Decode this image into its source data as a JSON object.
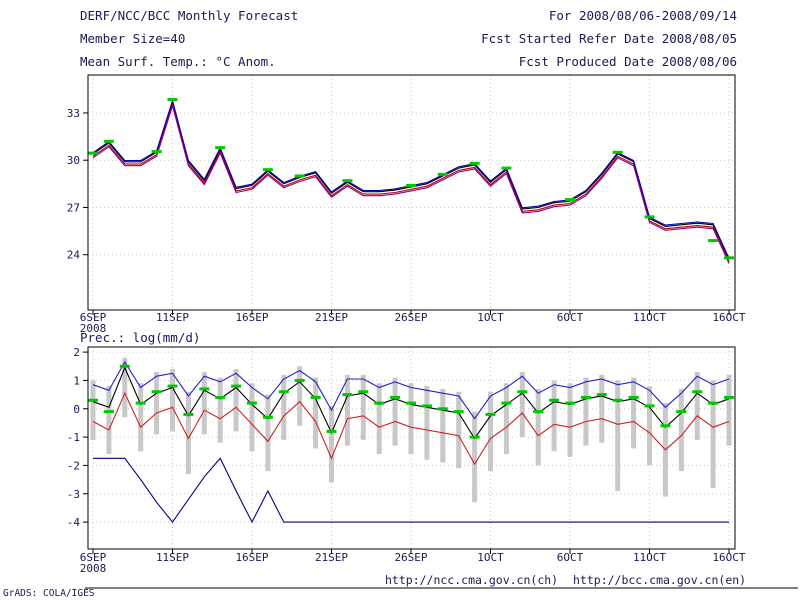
{
  "header": {
    "title": "DERF/NCC/BCC Monthly Forecast",
    "member_size": "Member Size=40",
    "for_period": "For 2008/08/06-2008/09/14",
    "fcst_started": "Fcst Started Refer Date 2008/08/05",
    "fcst_produced": "Fcst Produced Date 2008/08/06"
  },
  "footer": {
    "grads_credit": "GrADS: COLA/IGES",
    "url_ch": "http://ncc.cma.gov.cn(ch)",
    "url_en": "http://bcc.cma.gov.cn(en)"
  },
  "colors": {
    "text": "#1a1a52",
    "obs_dash_green": "#00c800",
    "spread_bar_gray": "#c8c8c8",
    "frame": "#000000"
  },
  "chart_data": [
    {
      "type": "line",
      "title": "Mean Surf. Temp.: °C Anom.",
      "xlabel": "",
      "ylabel": "°C",
      "ylim": [
        20.49,
        35.41
      ],
      "yticks": [
        24,
        27,
        30,
        33
      ],
      "x_range_days": [
        0,
        40
      ],
      "x_tick_days": [
        0,
        5,
        10,
        15,
        20,
        25,
        30,
        35,
        40
      ],
      "x_ticklabels": [
        "6SEP",
        "11SEP",
        "16SEP",
        "21SEP",
        "26SEP",
        "1OCT",
        "6OCT",
        "11OCT",
        "16OCT"
      ],
      "year_label": "2008",
      "grid": true,
      "series": [
        {
          "name": "ensemble-mean-black",
          "color": "#000000",
          "values": [
            30.4,
            31.1,
            29.9,
            29.9,
            30.5,
            33.7,
            29.9,
            28.7,
            30.7,
            28.2,
            28.4,
            29.3,
            28.5,
            28.9,
            29.2,
            27.9,
            28.6,
            28.0,
            28.0,
            28.1,
            28.3,
            28.5,
            29.0,
            29.5,
            29.7,
            28.6,
            29.4,
            26.9,
            27.0,
            27.3,
            27.4,
            28.0,
            29.1,
            30.4,
            29.9,
            26.3,
            25.8,
            25.9,
            26.0,
            25.9,
            23.7
          ]
        },
        {
          "name": "member-line-red",
          "color": "#b40000",
          "values": [
            30.25,
            30.95,
            29.75,
            29.75,
            30.35,
            33.55,
            29.75,
            28.55,
            30.55,
            28.05,
            28.25,
            29.15,
            28.35,
            28.75,
            29.05,
            27.75,
            28.45,
            27.85,
            27.85,
            27.95,
            28.15,
            28.35,
            28.85,
            29.35,
            29.55,
            28.45,
            29.25,
            26.75,
            26.85,
            27.15,
            27.25,
            27.85,
            28.95,
            30.25,
            29.75,
            26.15,
            25.65,
            25.75,
            25.85,
            25.75,
            23.55
          ]
        },
        {
          "name": "member-line-blue",
          "color": "#0000b4",
          "values": [
            30.48,
            31.18,
            29.98,
            29.98,
            30.58,
            33.78,
            29.98,
            28.78,
            30.78,
            28.28,
            28.48,
            29.38,
            28.58,
            28.98,
            29.28,
            27.98,
            28.68,
            28.08,
            28.08,
            28.18,
            28.38,
            28.58,
            29.08,
            29.58,
            29.78,
            28.68,
            29.48,
            26.98,
            27.08,
            27.38,
            27.48,
            28.08,
            29.18,
            30.48,
            29.98,
            26.38,
            25.88,
            25.98,
            26.08,
            25.98,
            23.78
          ]
        },
        {
          "name": "member-line-purple",
          "color": "#8c008c",
          "values": [
            30.15,
            30.85,
            29.65,
            29.65,
            30.25,
            33.45,
            29.65,
            28.45,
            30.45,
            27.95,
            28.15,
            29.05,
            28.25,
            28.65,
            28.95,
            27.65,
            28.35,
            27.75,
            27.75,
            27.85,
            28.05,
            28.25,
            28.75,
            29.25,
            29.45,
            28.35,
            29.15,
            26.65,
            26.75,
            27.05,
            27.15,
            27.75,
            28.85,
            30.15,
            29.65,
            26.05,
            25.55,
            25.65,
            25.75,
            25.65,
            23.45
          ]
        }
      ],
      "obs_dashes": {
        "name": "green-observation-dashes",
        "color": "#00c800",
        "days": [
          0,
          1,
          4,
          5,
          8,
          11,
          13,
          16,
          20,
          22,
          24,
          26,
          30,
          33,
          35,
          39,
          40
        ],
        "values": [
          30.45,
          31.2,
          30.55,
          33.85,
          30.8,
          29.4,
          29.0,
          28.7,
          28.4,
          29.1,
          29.8,
          29.5,
          27.5,
          30.5,
          26.4,
          24.9,
          23.8
        ]
      }
    },
    {
      "type": "line",
      "title": "Prec.: log(mm/d)",
      "xlabel": "",
      "ylabel": "log(mm/d)",
      "ylim": [
        -4.95,
        2.18
      ],
      "yticks": [
        2,
        1,
        0,
        -1,
        -2,
        -3,
        -4
      ],
      "x_range_days": [
        0,
        40
      ],
      "x_tick_days": [
        0,
        5,
        10,
        15,
        20,
        25,
        30,
        35,
        40
      ],
      "x_ticklabels": [
        "6SEP",
        "11SEP",
        "16SEP",
        "21SEP",
        "26SEP",
        "1OCT",
        "6OCT",
        "11OCT",
        "16OCT"
      ],
      "year_label": "2008",
      "grid": true,
      "bars": {
        "name": "ensemble-spread-bars",
        "color": "#c8c8c8",
        "high": [
          1.0,
          0.8,
          1.8,
          0.9,
          1.3,
          1.4,
          0.6,
          1.3,
          1.1,
          1.4,
          0.9,
          0.5,
          1.2,
          1.5,
          1.1,
          0.1,
          1.2,
          1.2,
          0.9,
          1.1,
          0.9,
          0.8,
          0.7,
          0.6,
          -0.1,
          0.6,
          0.9,
          1.3,
          0.7,
          1.0,
          0.9,
          1.1,
          1.2,
          1.0,
          1.1,
          0.8,
          0.2,
          0.7,
          1.3,
          1.0,
          1.2
        ],
        "low": [
          -1.1,
          -1.6,
          -0.3,
          -1.5,
          -0.9,
          -0.8,
          -2.3,
          -0.9,
          -1.2,
          -0.8,
          -1.5,
          -2.2,
          -1.1,
          -0.6,
          -1.4,
          -2.6,
          -1.3,
          -1.1,
          -1.6,
          -1.3,
          -1.6,
          -1.8,
          -1.9,
          -2.1,
          -3.3,
          -2.2,
          -1.6,
          -1.0,
          -2.0,
          -1.5,
          -1.7,
          -1.3,
          -1.2,
          -2.9,
          -1.4,
          -2.0,
          -3.1,
          -2.2,
          -1.1,
          -2.8,
          -1.3
        ]
      },
      "series": [
        {
          "name": "upper-envelope-blue",
          "color": "#2222cc",
          "values": [
            0.85,
            0.65,
            1.65,
            0.75,
            1.15,
            1.25,
            0.45,
            1.15,
            0.95,
            1.25,
            0.75,
            0.35,
            1.05,
            1.35,
            0.95,
            -0.05,
            1.05,
            1.05,
            0.75,
            0.95,
            0.75,
            0.65,
            0.55,
            0.45,
            -0.35,
            0.45,
            0.75,
            1.15,
            0.55,
            0.85,
            0.75,
            0.95,
            1.05,
            0.85,
            0.95,
            0.65,
            0.05,
            0.55,
            1.15,
            0.85,
            1.05
          ]
        },
        {
          "name": "ensemble-mean-black",
          "color": "#000000",
          "values": [
            0.25,
            0.05,
            1.45,
            0.15,
            0.55,
            0.75,
            -0.25,
            0.65,
            0.35,
            0.75,
            0.15,
            -0.35,
            0.55,
            0.95,
            0.35,
            -0.85,
            0.45,
            0.55,
            0.15,
            0.35,
            0.15,
            0.05,
            -0.05,
            -0.15,
            -1.05,
            -0.25,
            0.15,
            0.55,
            -0.15,
            0.25,
            0.15,
            0.35,
            0.45,
            0.25,
            0.35,
            0.05,
            -0.65,
            -0.15,
            0.55,
            0.15,
            0.35
          ]
        },
        {
          "name": "lower-envelope-red",
          "color": "#cc2222",
          "values": [
            -0.45,
            -0.75,
            0.55,
            -0.65,
            -0.15,
            0.05,
            -1.05,
            -0.05,
            -0.35,
            0.05,
            -0.55,
            -1.15,
            -0.25,
            0.25,
            -0.45,
            -1.75,
            -0.35,
            -0.25,
            -0.65,
            -0.45,
            -0.65,
            -0.75,
            -0.85,
            -0.95,
            -1.95,
            -1.05,
            -0.65,
            -0.15,
            -0.95,
            -0.55,
            -0.65,
            -0.45,
            -0.35,
            -0.55,
            -0.45,
            -0.85,
            -1.45,
            -0.95,
            -0.25,
            -0.65,
            -0.45
          ]
        },
        {
          "name": "dry-member-navy",
          "color": "#000080",
          "values": [
            -1.75,
            -1.75,
            -1.75,
            -2.5,
            -3.3,
            -4,
            -3.2,
            -2.4,
            -1.75,
            -2.9,
            -4,
            -2.9,
            -4,
            -4,
            -4,
            -4,
            -4,
            -4,
            -4,
            -4,
            -4,
            -4,
            -4,
            -4,
            -4,
            -4,
            -4,
            -4,
            -4,
            -4,
            -4,
            -4,
            -4,
            -4,
            -4,
            -4,
            -4,
            -4,
            -4,
            -4,
            -4
          ]
        }
      ],
      "obs_dashes": {
        "name": "green-observation-dashes",
        "color": "#00c800",
        "days": [
          0,
          1,
          2,
          3,
          4,
          5,
          6,
          7,
          8,
          9,
          10,
          11,
          12,
          13,
          14,
          15,
          16,
          17,
          18,
          19,
          20,
          21,
          22,
          23,
          24,
          25,
          26,
          27,
          28,
          29,
          30,
          31,
          32,
          33,
          34,
          35,
          36,
          37,
          38,
          39,
          40
        ],
        "values": [
          0.3,
          -0.1,
          1.5,
          0.2,
          0.6,
          0.8,
          -0.2,
          0.7,
          0.4,
          0.8,
          0.2,
          -0.3,
          0.6,
          1.0,
          0.4,
          -0.8,
          0.5,
          0.6,
          0.2,
          0.4,
          0.2,
          0.1,
          0.0,
          -0.1,
          -1.0,
          -0.2,
          0.2,
          0.6,
          -0.1,
          0.3,
          0.2,
          0.4,
          0.5,
          0.3,
          0.4,
          0.1,
          -0.6,
          -0.1,
          0.6,
          0.2,
          0.4
        ]
      }
    }
  ]
}
